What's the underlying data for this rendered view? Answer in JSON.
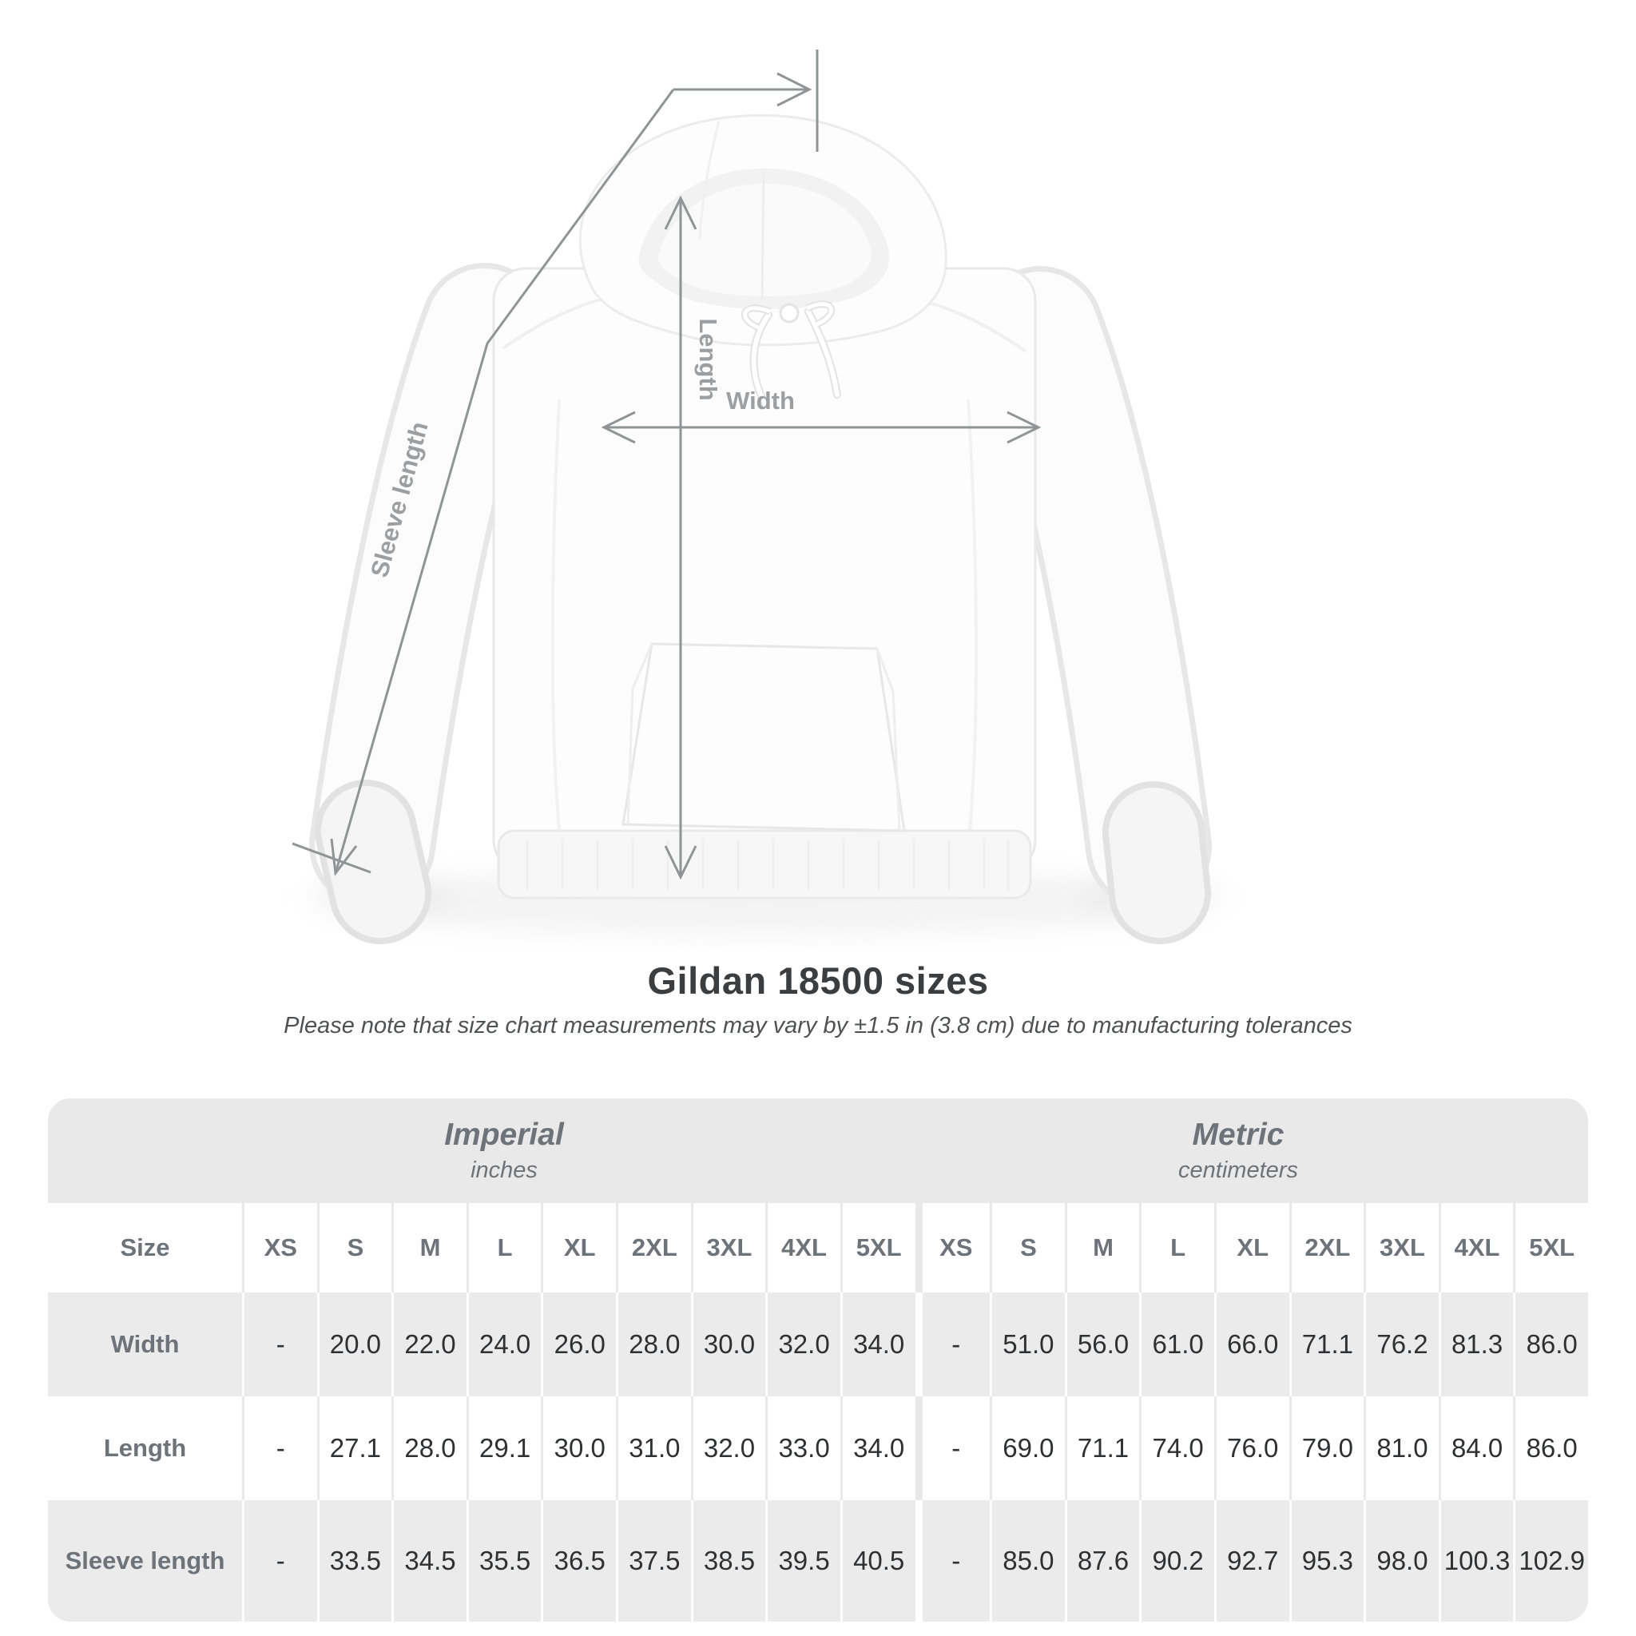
{
  "diagram": {
    "labels": {
      "width": "Width",
      "length": "Length",
      "sleeve": "Sleeve length"
    },
    "line_color": "#8f9496",
    "label_color": "#9b9fa2"
  },
  "heading": {
    "title": "Gildan 18500 sizes",
    "subtitle": "Please note that size chart measurements may vary by ±1.5 in (3.8 cm) due to manufacturing tolerances"
  },
  "table": {
    "size_header": "Size",
    "unit_groups": [
      {
        "name": "Imperial",
        "unit": "inches"
      },
      {
        "name": "Metric",
        "unit": "centimeters"
      }
    ],
    "sizes": [
      "XS",
      "S",
      "M",
      "L",
      "XL",
      "2XL",
      "3XL",
      "4XL",
      "5XL"
    ],
    "rows": [
      {
        "label": "Width",
        "imperial": [
          "-",
          "20.0",
          "22.0",
          "24.0",
          "26.0",
          "28.0",
          "30.0",
          "32.0",
          "34.0"
        ],
        "metric": [
          "-",
          "51.0",
          "56.0",
          "61.0",
          "66.0",
          "71.1",
          "76.2",
          "81.3",
          "86.0"
        ]
      },
      {
        "label": "Length",
        "imperial": [
          "-",
          "27.1",
          "28.0",
          "29.1",
          "30.0",
          "31.0",
          "32.0",
          "33.0",
          "34.0"
        ],
        "metric": [
          "-",
          "69.0",
          "71.1",
          "74.0",
          "76.0",
          "79.0",
          "81.0",
          "84.0",
          "86.0"
        ]
      },
      {
        "label": "Sleeve length",
        "imperial": [
          "-",
          "33.5",
          "34.5",
          "35.5",
          "36.5",
          "37.5",
          "38.5",
          "39.5",
          "40.5"
        ],
        "metric": [
          "-",
          "85.0",
          "87.6",
          "90.2",
          "92.7",
          "95.3",
          "98.0",
          "100.3",
          "102.9"
        ]
      }
    ]
  },
  "colors": {
    "banner": "#e9e9e9",
    "shaded_row": "#ebebeb",
    "header_text": "#6d7378",
    "value_text": "#2e3133",
    "title_text": "#3b3e40",
    "subtitle_text": "#4f5254"
  },
  "chart_data": {
    "type": "table",
    "title": "Gildan 18500 sizes",
    "note": "Please note that size chart measurements may vary by ±1.5 in (3.8 cm) due to manufacturing tolerances",
    "units": [
      "inches",
      "centimeters"
    ],
    "sizes": [
      "XS",
      "S",
      "M",
      "L",
      "XL",
      "2XL",
      "3XL",
      "4XL",
      "5XL"
    ],
    "inches": {
      "Width": [
        "-",
        20.0,
        22.0,
        24.0,
        26.0,
        28.0,
        30.0,
        32.0,
        34.0
      ],
      "Length": [
        "-",
        27.1,
        28.0,
        29.1,
        30.0,
        31.0,
        32.0,
        33.0,
        34.0
      ],
      "Sleeve length": [
        "-",
        33.5,
        34.5,
        35.5,
        36.5,
        37.5,
        38.5,
        39.5,
        40.5
      ]
    },
    "centimeters": {
      "Width": [
        "-",
        51.0,
        56.0,
        61.0,
        66.0,
        71.1,
        76.2,
        81.3,
        86.0
      ],
      "Length": [
        "-",
        69.0,
        71.1,
        74.0,
        76.0,
        79.0,
        81.0,
        84.0,
        86.0
      ],
      "Sleeve length": [
        "-",
        85.0,
        87.6,
        90.2,
        92.7,
        95.3,
        98.0,
        100.3,
        102.9
      ]
    }
  }
}
